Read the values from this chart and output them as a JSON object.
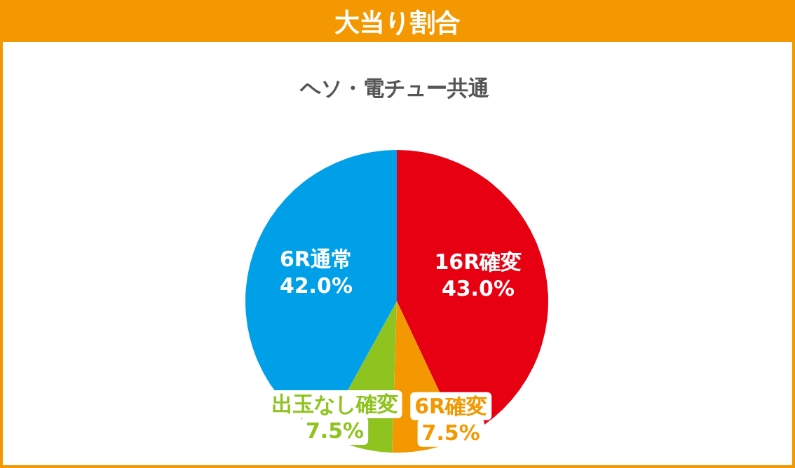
{
  "chart_data": {
    "type": "pie",
    "title": "大当り割合",
    "subtitle": "ヘソ・電チュー共通",
    "categories": [
      "16R確変",
      "6R確変",
      "出玉なし確変",
      "6R通常"
    ],
    "values": [
      43.0,
      7.5,
      7.5,
      42.0
    ],
    "colors": [
      "#e60012",
      "#f39800",
      "#8fc31f",
      "#00a0e9"
    ],
    "value_labels": [
      "43.0%",
      "7.5%",
      "7.5%",
      "42.0%"
    ]
  }
}
